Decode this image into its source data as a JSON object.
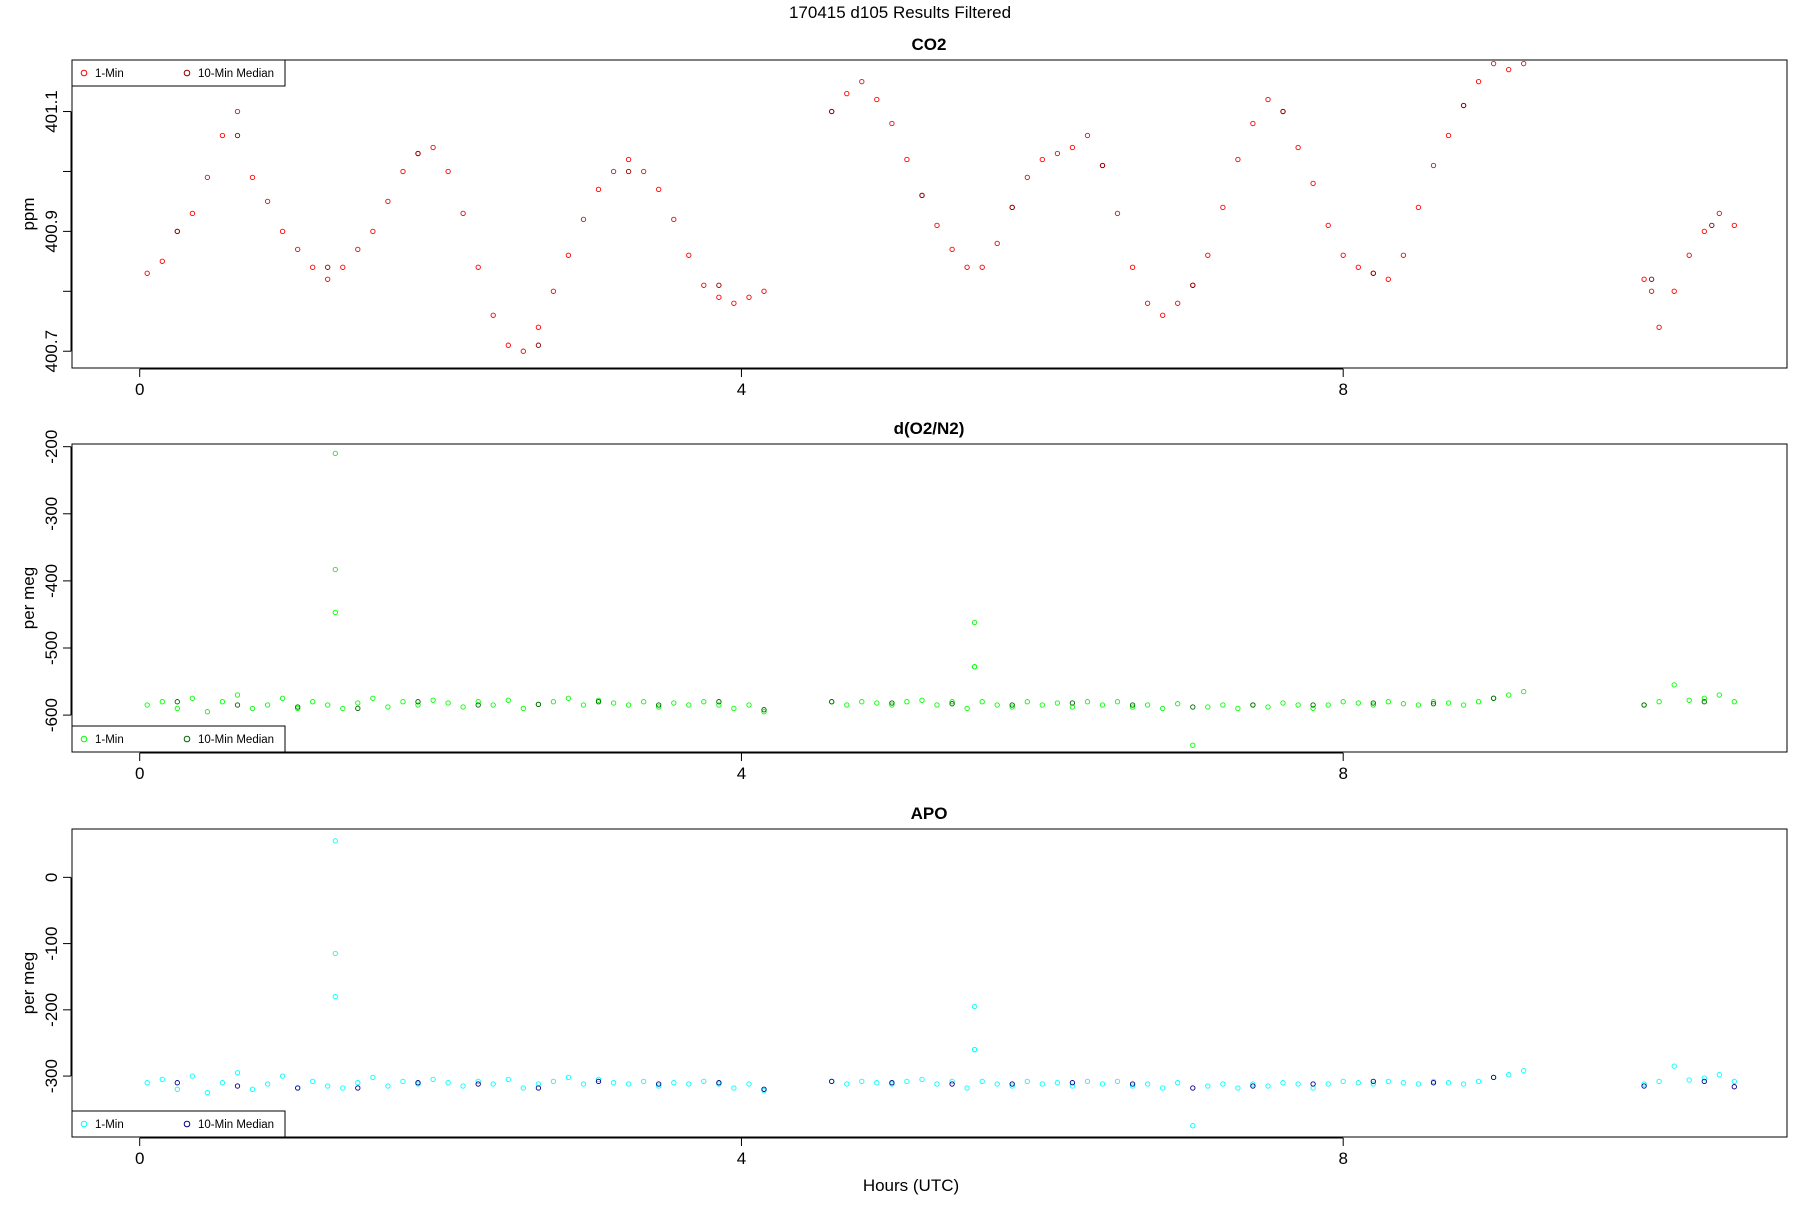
{
  "page": {
    "title": "170415   d105   Results Filtered",
    "xlabel": "Hours (UTC)"
  },
  "legend_labels": {
    "raw": "1-Min",
    "median": "10-Min Median"
  },
  "chart_data": [
    {
      "id": "co2",
      "type": "scatter",
      "title": "CO2",
      "ylabel": "ppm",
      "xlim": [
        -0.45,
        10.95
      ],
      "ylim": [
        400.672,
        401.186
      ],
      "xticks": [
        0,
        4,
        8
      ],
      "yticks": [
        400.7,
        400.8,
        400.9,
        401.0,
        401.1
      ],
      "ytick_labels": [
        "400.7",
        "",
        "400.9",
        "",
        "401.1"
      ],
      "legend_position": "top-left",
      "raw_color": "#ff0000",
      "median_color": "#8b0000",
      "series": [
        {
          "name": "1-Min",
          "kind": "raw",
          "x": [
            0.05,
            0.15,
            0.25,
            0.35,
            0.45,
            0.55,
            0.65,
            0.75,
            0.85,
            0.95,
            1.05,
            1.15,
            1.25,
            1.35,
            1.45,
            1.55,
            1.65,
            1.75,
            1.85,
            1.95,
            2.05,
            2.15,
            2.25,
            2.35,
            2.45,
            2.55,
            2.65,
            2.75,
            2.85,
            2.95,
            3.05,
            3.15,
            3.25,
            3.35,
            3.45,
            3.55,
            3.65,
            3.75,
            3.85,
            3.95,
            4.05,
            4.15,
            4.6,
            4.7,
            4.8,
            4.9,
            5.0,
            5.1,
            5.2,
            5.3,
            5.4,
            5.5,
            5.6,
            5.7,
            5.8,
            5.9,
            6.0,
            6.1,
            6.2,
            6.3,
            6.4,
            6.5,
            6.6,
            6.7,
            6.8,
            6.9,
            7.0,
            7.1,
            7.2,
            7.3,
            7.4,
            7.5,
            7.6,
            7.7,
            7.8,
            7.9,
            8.0,
            8.1,
            8.2,
            8.3,
            8.4,
            8.5,
            8.6,
            8.7,
            8.8,
            8.9,
            9.0,
            9.1,
            9.2,
            10.0,
            10.05,
            10.1,
            10.2,
            10.3,
            10.4,
            10.5,
            10.6
          ],
          "y": [
            400.83,
            400.85,
            400.9,
            400.93,
            400.99,
            401.06,
            401.1,
            400.99,
            400.95,
            400.9,
            400.87,
            400.84,
            400.82,
            400.84,
            400.87,
            400.9,
            400.95,
            401.0,
            401.03,
            401.04,
            401.0,
            400.93,
            400.84,
            400.76,
            400.71,
            400.7,
            400.74,
            400.8,
            400.86,
            400.92,
            400.97,
            401.0,
            401.02,
            401.0,
            400.97,
            400.92,
            400.86,
            400.81,
            400.79,
            400.78,
            400.79,
            400.8,
            401.1,
            401.13,
            401.15,
            401.12,
            401.08,
            401.02,
            400.96,
            400.91,
            400.87,
            400.84,
            400.84,
            400.88,
            400.94,
            400.99,
            401.02,
            401.03,
            401.04,
            401.06,
            401.01,
            400.93,
            400.84,
            400.78,
            400.76,
            400.78,
            400.81,
            400.86,
            400.94,
            401.02,
            401.08,
            401.12,
            401.1,
            401.04,
            400.98,
            400.91,
            400.86,
            400.84,
            400.83,
            400.82,
            400.86,
            400.94,
            401.01,
            401.06,
            401.11,
            401.15,
            401.18,
            401.17,
            401.18,
            400.82,
            400.8,
            400.74,
            400.8,
            400.86,
            400.9,
            400.93,
            400.91
          ]
        },
        {
          "name": "10-Min Median",
          "kind": "median",
          "x": [
            0.25,
            0.65,
            1.25,
            1.85,
            2.65,
            3.25,
            3.85,
            4.6,
            5.2,
            5.8,
            6.4,
            7.0,
            7.6,
            8.2,
            8.8,
            10.05,
            10.45
          ],
          "y": [
            400.9,
            401.06,
            400.84,
            401.03,
            400.71,
            401.0,
            400.81,
            401.1,
            400.96,
            400.94,
            401.01,
            400.81,
            401.1,
            400.83,
            401.11,
            400.82,
            400.91
          ]
        }
      ]
    },
    {
      "id": "o2n2",
      "type": "scatter",
      "title": "d(O2/N2)",
      "ylabel": "per meg",
      "xlim": [
        -0.45,
        10.95
      ],
      "ylim": [
        -655,
        -196
      ],
      "xticks": [
        0,
        4,
        8
      ],
      "yticks": [
        -200,
        -300,
        -400,
        -500,
        -600
      ],
      "ytick_labels": [
        "-200",
        "-300",
        "-400",
        "-500",
        "-600"
      ],
      "legend_position": "bottom-left",
      "raw_color": "#00ff00",
      "median_color": "#006400",
      "series": [
        {
          "name": "1-Min",
          "kind": "raw",
          "x": [
            0.05,
            0.15,
            0.25,
            0.35,
            0.45,
            0.55,
            0.65,
            0.75,
            0.85,
            0.95,
            1.05,
            1.15,
            1.25,
            1.3,
            1.3,
            1.3,
            1.35,
            1.45,
            1.55,
            1.65,
            1.75,
            1.85,
            1.95,
            2.05,
            2.15,
            2.25,
            2.35,
            2.45,
            2.55,
            2.65,
            2.75,
            2.85,
            2.95,
            3.05,
            3.15,
            3.25,
            3.35,
            3.45,
            3.55,
            3.65,
            3.75,
            3.85,
            3.95,
            4.05,
            4.15,
            4.6,
            4.7,
            4.8,
            4.9,
            5.0,
            5.1,
            5.2,
            5.3,
            5.4,
            5.5,
            5.55,
            5.55,
            5.55,
            5.6,
            5.7,
            5.8,
            5.9,
            6.0,
            6.1,
            6.2,
            6.3,
            6.4,
            6.5,
            6.6,
            6.7,
            6.8,
            6.9,
            7.0,
            7.1,
            7.2,
            7.3,
            7.4,
            7.5,
            7.6,
            7.7,
            7.8,
            7.9,
            8.0,
            8.1,
            8.2,
            8.3,
            8.4,
            8.5,
            8.6,
            8.7,
            8.8,
            8.9,
            9.0,
            9.1,
            9.2,
            10.0,
            10.1,
            10.2,
            10.3,
            10.4,
            10.5,
            10.6
          ],
          "y": [
            -585,
            -580,
            -590,
            -575,
            -595,
            -580,
            -570,
            -590,
            -585,
            -575,
            -590,
            -580,
            -585,
            -210,
            -383,
            -447,
            -590,
            -582,
            -575,
            -588,
            -580,
            -585,
            -578,
            -582,
            -588,
            -580,
            -585,
            -578,
            -590,
            -584,
            -580,
            -575,
            -585,
            -578,
            -582,
            -585,
            -580,
            -588,
            -582,
            -585,
            -580,
            -585,
            -590,
            -585,
            -595,
            -580,
            -585,
            -580,
            -582,
            -585,
            -580,
            -578,
            -585,
            -580,
            -590,
            -462,
            -528,
            -528,
            -580,
            -585,
            -588,
            -580,
            -585,
            -582,
            -588,
            -580,
            -585,
            -580,
            -588,
            -585,
            -590,
            -583,
            -645,
            -588,
            -585,
            -590,
            -585,
            -588,
            -582,
            -585,
            -590,
            -585,
            -580,
            -582,
            -585,
            -580,
            -583,
            -585,
            -580,
            -582,
            -585,
            -580,
            -575,
            -570,
            -565,
            -585,
            -580,
            -555,
            -578,
            -575,
            -570,
            -580
          ]
        },
        {
          "name": "10-Min Median",
          "kind": "median",
          "x": [
            0.25,
            0.65,
            1.05,
            1.45,
            1.85,
            2.25,
            2.65,
            3.05,
            3.45,
            3.85,
            4.15,
            4.6,
            5.0,
            5.4,
            5.8,
            6.2,
            6.6,
            7.0,
            7.4,
            7.8,
            8.2,
            8.6,
            9.0,
            10.0,
            10.4
          ],
          "y": [
            -580,
            -585,
            -588,
            -590,
            -580,
            -585,
            -584,
            -580,
            -585,
            -580,
            -592,
            -580,
            -582,
            -583,
            -585,
            -582,
            -585,
            -588,
            -585,
            -585,
            -582,
            -583,
            -575,
            -585,
            -580
          ]
        }
      ]
    },
    {
      "id": "apo",
      "type": "scatter",
      "title": "APO",
      "ylabel": "per meg",
      "xlim": [
        -0.45,
        10.95
      ],
      "ylim": [
        -392,
        73
      ],
      "xticks": [
        0,
        4,
        8
      ],
      "yticks": [
        0,
        -100,
        -200,
        -300
      ],
      "ytick_labels": [
        "0",
        "-100",
        "-200",
        "-300"
      ],
      "legend_position": "bottom-left",
      "raw_color": "#00ffff",
      "median_color": "#00008b",
      "series": [
        {
          "name": "1-Min",
          "kind": "raw",
          "x": [
            0.05,
            0.15,
            0.25,
            0.35,
            0.45,
            0.55,
            0.65,
            0.75,
            0.85,
            0.95,
            1.05,
            1.15,
            1.25,
            1.3,
            1.3,
            1.3,
            1.35,
            1.45,
            1.55,
            1.65,
            1.75,
            1.85,
            1.95,
            2.05,
            2.15,
            2.25,
            2.35,
            2.45,
            2.55,
            2.65,
            2.75,
            2.85,
            2.95,
            3.05,
            3.15,
            3.25,
            3.35,
            3.45,
            3.55,
            3.65,
            3.75,
            3.85,
            3.95,
            4.05,
            4.15,
            4.6,
            4.7,
            4.8,
            4.9,
            5.0,
            5.1,
            5.2,
            5.3,
            5.4,
            5.5,
            5.55,
            5.55,
            5.55,
            5.6,
            5.7,
            5.8,
            5.9,
            6.0,
            6.1,
            6.2,
            6.3,
            6.4,
            6.5,
            6.6,
            6.7,
            6.8,
            6.9,
            7.0,
            7.1,
            7.2,
            7.3,
            7.4,
            7.5,
            7.6,
            7.7,
            7.8,
            7.9,
            8.0,
            8.1,
            8.2,
            8.3,
            8.4,
            8.5,
            8.6,
            8.7,
            8.8,
            8.9,
            9.0,
            9.1,
            9.2,
            10.0,
            10.1,
            10.2,
            10.3,
            10.4,
            10.5,
            10.6
          ],
          "y": [
            -310,
            -305,
            -320,
            -300,
            -325,
            -310,
            -295,
            -320,
            -312,
            -300,
            -318,
            -308,
            -315,
            55,
            -115,
            -180,
            -318,
            -310,
            -302,
            -315,
            -308,
            -312,
            -305,
            -310,
            -315,
            -308,
            -312,
            -305,
            -318,
            -312,
            -308,
            -302,
            -312,
            -305,
            -310,
            -312,
            -308,
            -315,
            -310,
            -312,
            -308,
            -312,
            -318,
            -312,
            -322,
            -308,
            -312,
            -308,
            -310,
            -312,
            -308,
            -305,
            -312,
            -308,
            -318,
            -195,
            -260,
            -260,
            -308,
            -312,
            -315,
            -308,
            -312,
            -310,
            -315,
            -308,
            -312,
            -308,
            -315,
            -312,
            -318,
            -310,
            -375,
            -315,
            -312,
            -318,
            -312,
            -315,
            -310,
            -312,
            -318,
            -312,
            -308,
            -310,
            -312,
            -308,
            -310,
            -312,
            -308,
            -310,
            -312,
            -308,
            -302,
            -298,
            -292,
            -312,
            -308,
            -285,
            -306,
            -303,
            -298,
            -308
          ]
        },
        {
          "name": "10-Min Median",
          "kind": "median",
          "x": [
            0.25,
            0.65,
            1.05,
            1.45,
            1.85,
            2.25,
            2.65,
            3.05,
            3.45,
            3.85,
            4.15,
            4.6,
            5.0,
            5.4,
            5.8,
            6.2,
            6.6,
            7.0,
            7.4,
            7.8,
            8.2,
            8.6,
            9.0,
            10.0,
            10.4,
            10.6
          ],
          "y": [
            -310,
            -315,
            -318,
            -318,
            -310,
            -312,
            -318,
            -308,
            -312,
            -310,
            -320,
            -308,
            -310,
            -312,
            -312,
            -310,
            -312,
            -318,
            -315,
            -312,
            -308,
            -310,
            -302,
            -315,
            -308,
            -316
          ]
        }
      ]
    }
  ]
}
